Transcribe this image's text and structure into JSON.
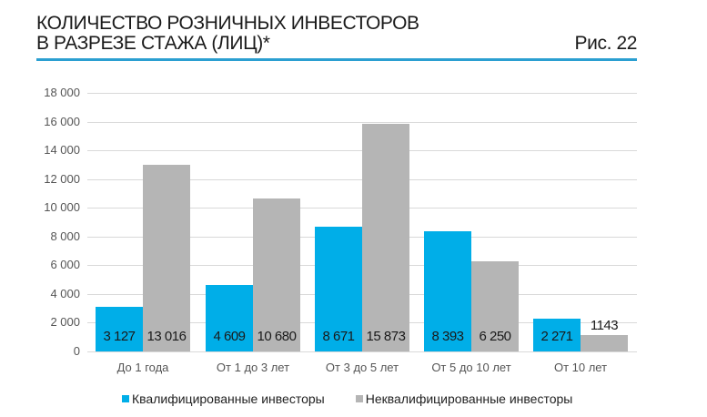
{
  "header": {
    "title_line1": "КОЛИЧЕСТВО РОЗНИЧНЫХ ИНВЕСТОРОВ",
    "title_line2": "В РАЗРЕЗЕ СТАЖА (ЛИЦ)*",
    "figure_label": "Рис. 22"
  },
  "colors": {
    "qualified": "#00aee8",
    "non_qualified": "#b5b5b5",
    "accent_rule": "#2b9fd1"
  },
  "axis": {
    "y_ticks": [
      "18 000",
      "16 000",
      "14 000",
      "12 000",
      "10 000",
      "8 000",
      "6 000",
      "4 000",
      "2 000",
      "0"
    ]
  },
  "groups": [
    {
      "label": "До 1 года",
      "q": "3 127",
      "n": "13 016"
    },
    {
      "label": "От 1 до 3 лет",
      "q": "4 609",
      "n": "10 680"
    },
    {
      "label": "От 3 до 5 лет",
      "q": "8 671",
      "n": "15 873"
    },
    {
      "label": "От 5 до 10 лет",
      "q": "8 393",
      "n": "6 250"
    },
    {
      "label": "От 10 лет",
      "q": "2 271",
      "n": "1143"
    }
  ],
  "legend": {
    "qualified": "Квалифицированные инвесторы",
    "non_qualified": "Неквалифицированные инвесторы"
  },
  "chart_data": {
    "type": "bar",
    "title": "КОЛИЧЕСТВО РОЗНИЧНЫХ ИНВЕСТОРОВ В РАЗРЕЗЕ СТАЖА (ЛИЦ)*",
    "subtitle": "Рис. 22",
    "categories": [
      "До 1 года",
      "От 1 до 3 лет",
      "От 3 до 5 лет",
      "От 5 до 10 лет",
      "От 10 лет"
    ],
    "series": [
      {
        "name": "Квалифицированные инвесторы",
        "color": "#00aee8",
        "values": [
          3127,
          4609,
          8671,
          8393,
          2271
        ]
      },
      {
        "name": "Неквалифицированные инвесторы",
        "color": "#b5b5b5",
        "values": [
          13016,
          10680,
          15873,
          6250,
          1143
        ]
      }
    ],
    "xlabel": "",
    "ylabel": "",
    "ylim": [
      0,
      18000
    ],
    "y_tick_step": 2000,
    "grid": true,
    "legend_position": "bottom",
    "data_labels": true
  }
}
